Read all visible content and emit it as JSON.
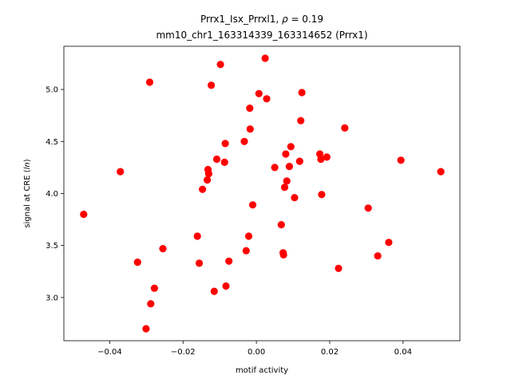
{
  "chart_data": {
    "type": "scatter",
    "title_line1_prefix": "Prrx1_Isx_Prrxl1, ",
    "title_rho_symbol": "ρ",
    "title_rho_value": " = 0.19",
    "title_line2": "mm10_chr1_163314339_163314652 (Prrx1)",
    "xlabel": "motif activity",
    "ylabel_prefix": "signal at CRE (",
    "ylabel_italic": "ln",
    "ylabel_suffix": ")",
    "xlim": [
      -0.0525,
      0.0555
    ],
    "ylim": [
      2.585,
      5.415
    ],
    "xticks": [
      -0.04,
      -0.02,
      0.0,
      0.02,
      0.04
    ],
    "xtick_labels": [
      "−0.04",
      "−0.02",
      "0.00",
      "0.02",
      "0.04"
    ],
    "yticks": [
      3.0,
      3.5,
      4.0,
      4.5,
      5.0
    ],
    "ytick_labels": [
      "3.0",
      "3.5",
      "4.0",
      "4.5",
      "5.0"
    ],
    "marker_color": "#ff0000",
    "points": [
      {
        "x": -0.0471,
        "y": 3.8
      },
      {
        "x": -0.0371,
        "y": 4.21
      },
      {
        "x": -0.0324,
        "y": 3.34
      },
      {
        "x": -0.0301,
        "y": 2.7
      },
      {
        "x": -0.0291,
        "y": 5.07
      },
      {
        "x": -0.0288,
        "y": 2.94
      },
      {
        "x": -0.0278,
        "y": 3.09
      },
      {
        "x": -0.0255,
        "y": 3.47
      },
      {
        "x": -0.0161,
        "y": 3.59
      },
      {
        "x": -0.0156,
        "y": 3.33
      },
      {
        "x": -0.0147,
        "y": 4.04
      },
      {
        "x": -0.0134,
        "y": 4.13
      },
      {
        "x": -0.0132,
        "y": 4.23
      },
      {
        "x": -0.013,
        "y": 4.19
      },
      {
        "x": -0.0123,
        "y": 5.04
      },
      {
        "x": -0.0115,
        "y": 3.06
      },
      {
        "x": -0.0108,
        "y": 4.33
      },
      {
        "x": -0.0098,
        "y": 5.24
      },
      {
        "x": -0.0087,
        "y": 4.3
      },
      {
        "x": -0.0085,
        "y": 4.48
      },
      {
        "x": -0.0083,
        "y": 3.11
      },
      {
        "x": -0.0075,
        "y": 3.35
      },
      {
        "x": -0.0033,
        "y": 4.5
      },
      {
        "x": -0.0028,
        "y": 3.45
      },
      {
        "x": -0.0021,
        "y": 3.59
      },
      {
        "x": -0.0018,
        "y": 4.82
      },
      {
        "x": -0.0017,
        "y": 4.62
      },
      {
        "x": -0.001,
        "y": 3.89
      },
      {
        "x": 0.0007,
        "y": 4.96
      },
      {
        "x": 0.0024,
        "y": 5.3
      },
      {
        "x": 0.0028,
        "y": 4.91
      },
      {
        "x": 0.005,
        "y": 4.25
      },
      {
        "x": 0.0068,
        "y": 3.7
      },
      {
        "x": 0.0073,
        "y": 3.43
      },
      {
        "x": 0.0074,
        "y": 3.41
      },
      {
        "x": 0.0077,
        "y": 4.06
      },
      {
        "x": 0.008,
        "y": 4.38
      },
      {
        "x": 0.0083,
        "y": 4.12
      },
      {
        "x": 0.009,
        "y": 4.26
      },
      {
        "x": 0.0094,
        "y": 4.45
      },
      {
        "x": 0.0104,
        "y": 3.96
      },
      {
        "x": 0.0118,
        "y": 4.31
      },
      {
        "x": 0.0121,
        "y": 4.7
      },
      {
        "x": 0.0124,
        "y": 4.97
      },
      {
        "x": 0.0173,
        "y": 4.38
      },
      {
        "x": 0.0176,
        "y": 4.33
      },
      {
        "x": 0.0178,
        "y": 3.99
      },
      {
        "x": 0.0192,
        "y": 4.35
      },
      {
        "x": 0.0224,
        "y": 3.28
      },
      {
        "x": 0.0241,
        "y": 4.63
      },
      {
        "x": 0.0305,
        "y": 3.86
      },
      {
        "x": 0.0331,
        "y": 3.4
      },
      {
        "x": 0.0361,
        "y": 3.53
      },
      {
        "x": 0.0394,
        "y": 4.32
      },
      {
        "x": 0.0503,
        "y": 4.21
      }
    ]
  }
}
